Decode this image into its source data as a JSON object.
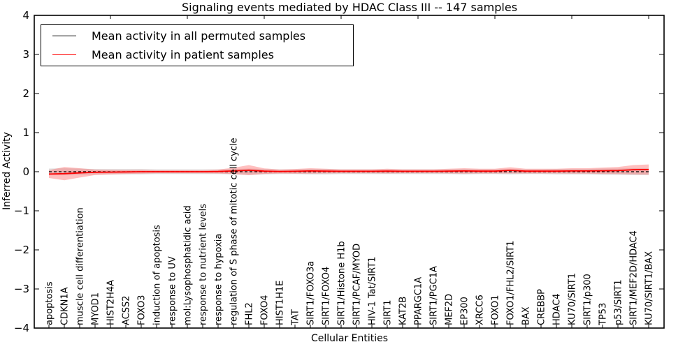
{
  "title": "Signaling events mediated by HDAC Class III -- 147 samples",
  "axes": {
    "xlabel": "Cellular Entities",
    "ylabel": "Inferred Activity"
  },
  "legend": {
    "items": [
      {
        "label": "Mean activity in all permuted samples",
        "color": "#000000"
      },
      {
        "label": "Mean activity in patient samples",
        "color": "#ff0000"
      }
    ]
  },
  "chart_data": {
    "type": "line",
    "title": "Signaling events mediated by HDAC Class III -- 147 samples",
    "xlabel": "Cellular Entities",
    "ylabel": "Inferred Activity",
    "ylim": [
      -4,
      4
    ],
    "yticks": [
      -4,
      -3,
      -2,
      -1,
      0,
      1,
      2,
      3,
      4
    ],
    "grid": false,
    "legend_position": "upper left",
    "categories": [
      "apoptosis",
      "CDKN1A",
      "muscle cell differentiation",
      "MYOD1",
      "HIST2H4A",
      "ACSS2",
      "FOXO3",
      "induction of apoptosis",
      "response to UV",
      "mol:Lysophosphatidic acid",
      "response to nutrient levels",
      "response to hypoxia",
      "regulation of S phase of mitotic cell cycle",
      "FHL2",
      "FOXO4",
      "HIST1H1E",
      "TAT",
      "SIRT1/FOXO3a",
      "SIRT1/FOXO4",
      "SIRT1/Histone H1b",
      "SIRT1/PCAF/MYOD",
      "HIV-1 Tat/SIRT1",
      "SIRT1",
      "KAT2B",
      "PPARGC1A",
      "SIRT1/PGC1A",
      "MEF2D",
      "EP300",
      "XRCC6",
      "FOXO1",
      "FOXO1/FHL2/SIRT1",
      "BAX",
      "CREBBP",
      "HDAC4",
      "KU70/SIRT1",
      "SIRT1/p300",
      "TP53",
      "p53/SIRT1",
      "SIRT1/MEF2D/HDAC4",
      "KU70/SIRT1/BAX"
    ],
    "series": [
      {
        "name": "Mean activity in all permuted samples",
        "color": "#000000",
        "style": "dashed",
        "values": [
          0,
          0,
          0,
          0,
          0,
          0,
          0,
          0,
          0,
          0,
          0,
          0,
          0,
          0,
          0,
          0,
          0,
          0,
          0,
          0,
          0,
          0,
          0,
          0,
          0,
          0,
          0,
          0,
          0,
          0,
          0,
          0,
          0,
          0,
          0,
          0,
          0,
          0,
          0,
          0
        ],
        "band": [
          0.08,
          0.09,
          0.08,
          0.07,
          0.07,
          0.07,
          0.07,
          0.06,
          0.06,
          0.06,
          0.06,
          0.06,
          0.07,
          0.08,
          0.07,
          0.06,
          0.06,
          0.07,
          0.07,
          0.06,
          0.06,
          0.06,
          0.06,
          0.06,
          0.06,
          0.06,
          0.06,
          0.07,
          0.06,
          0.06,
          0.07,
          0.06,
          0.06,
          0.07,
          0.07,
          0.07,
          0.08,
          0.08,
          0.09,
          0.09
        ],
        "band_color": "#999999"
      },
      {
        "name": "Mean activity in patient samples",
        "color": "#ff0000",
        "style": "solid",
        "values": [
          -0.06,
          -0.05,
          -0.03,
          -0.015,
          -0.01,
          -0.005,
          0,
          0,
          0,
          0,
          0,
          0.005,
          0.02,
          0.04,
          0.015,
          0.005,
          0.01,
          0.02,
          0.015,
          0.01,
          0.01,
          0.01,
          0.015,
          0.01,
          0.01,
          0.01,
          0.015,
          0.02,
          0.015,
          0.015,
          0.035,
          0.015,
          0.015,
          0.015,
          0.02,
          0.02,
          0.025,
          0.03,
          0.05,
          0.055
        ],
        "band": [
          0.1,
          0.17,
          0.12,
          0.07,
          0.06,
          0.05,
          0.05,
          0.04,
          0.04,
          0.04,
          0.04,
          0.05,
          0.08,
          0.13,
          0.07,
          0.05,
          0.06,
          0.07,
          0.06,
          0.05,
          0.05,
          0.05,
          0.06,
          0.05,
          0.05,
          0.05,
          0.06,
          0.07,
          0.06,
          0.06,
          0.08,
          0.06,
          0.06,
          0.06,
          0.07,
          0.07,
          0.08,
          0.09,
          0.12,
          0.13
        ],
        "band_color": "#ff6666"
      }
    ]
  }
}
